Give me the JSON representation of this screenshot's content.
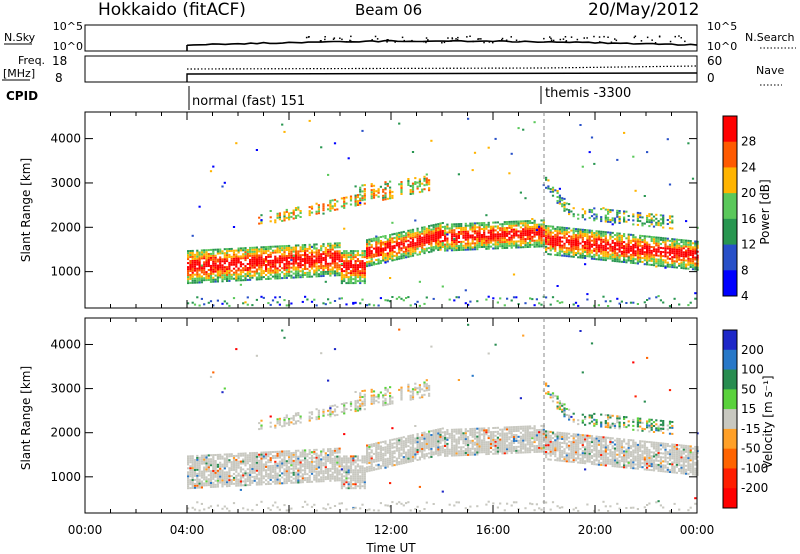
{
  "header": {
    "station": "Hokkaido (fitACF)",
    "beam": "Beam 06",
    "date": "20/May/2012"
  },
  "summary_panels": {
    "nsky_label": "N.Sky",
    "nsky_ticks": [
      "10^5",
      "10^0"
    ],
    "nsearch_label": "N.Search",
    "nsearch_ticks": [
      "10^5",
      "10^0"
    ],
    "freq_label": "Freq.",
    "freq_unit": "[MHz]",
    "freq_ticks": [
      "18",
      "8"
    ],
    "nave_label": "Nave",
    "nave_ticks": [
      "60",
      "0"
    ],
    "cpid_label": "CPID",
    "cpid_modes": [
      {
        "label": "normal (fast) 151",
        "start_hour": 4
      },
      {
        "label": "themis -3300",
        "start_hour": 18
      }
    ]
  },
  "chart_data": [
    {
      "type": "heatmap",
      "parameter": "power",
      "ylabel": "Slant Range [km]",
      "yticks": [
        1000,
        2000,
        3000,
        4000
      ],
      "ylim": [
        180,
        4600
      ],
      "xlim_hours": [
        0,
        24
      ],
      "data_start_hour": 4,
      "colorbar": {
        "label": "Power [dB]",
        "ticks": [
          "28",
          "24",
          "20",
          "16",
          "12",
          "8",
          "4"
        ],
        "colors": [
          "#ff0000",
          "#ff5a00",
          "#ffb400",
          "#5ac85a",
          "#289650",
          "#2850c8",
          "#0000ff"
        ]
      }
    },
    {
      "type": "heatmap",
      "parameter": "velocity",
      "ylabel": "Slant Range [km]",
      "yticks": [
        1000,
        2000,
        3000,
        4000
      ],
      "ylim": [
        180,
        4600
      ],
      "xlim_hours": [
        0,
        24
      ],
      "data_start_hour": 4,
      "colorbar": {
        "label": "Velocity [m s⁻¹]",
        "ticks": [
          "200",
          "100",
          "50",
          "15",
          "-15",
          "-50",
          "-100",
          "-200"
        ],
        "colors": [
          "#1e28c8",
          "#2878c8",
          "#288c50",
          "#5ad23c",
          "#c8c8c0",
          "#ffa028",
          "#ff6400",
          "#ff1e00",
          "#ff0000"
        ]
      }
    }
  ],
  "x_axis": {
    "label": "Time UT",
    "ticks": [
      "00:00",
      "04:00",
      "08:00",
      "12:00",
      "16:00",
      "20:00",
      "00:00"
    ]
  }
}
